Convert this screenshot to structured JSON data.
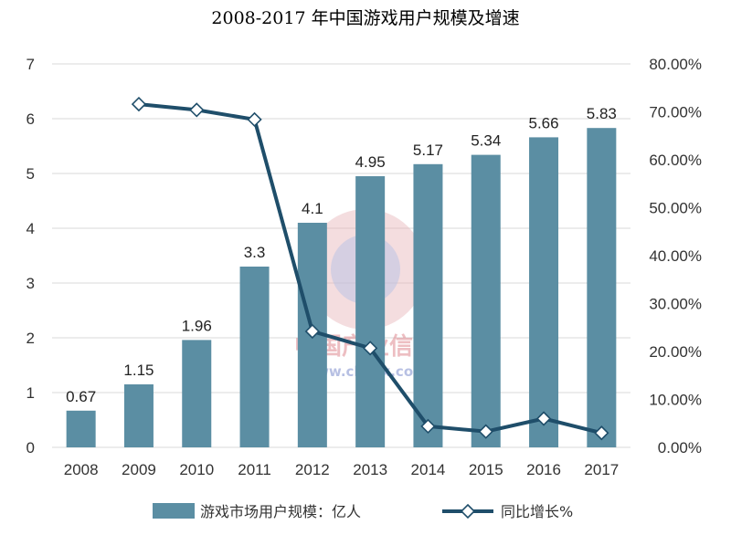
{
  "chart_data": {
    "type": "bar",
    "title": "2008-2017 年中国游戏用户规模及增速",
    "categories": [
      "2008",
      "2009",
      "2010",
      "2011",
      "2012",
      "2013",
      "2014",
      "2015",
      "2016",
      "2017"
    ],
    "series": [
      {
        "name": "游戏市场用户规模：亿人",
        "type": "bar",
        "axis": "left",
        "values": [
          0.67,
          1.15,
          1.96,
          3.3,
          4.1,
          4.95,
          5.17,
          5.34,
          5.66,
          5.83
        ],
        "labels": [
          "0.67",
          "1.15",
          "1.96",
          "3.3",
          "4.1",
          "4.95",
          "5.17",
          "5.34",
          "5.66",
          "5.83"
        ],
        "color": "#5b8ea3"
      },
      {
        "name": "同比增长%",
        "type": "line",
        "axis": "right",
        "values": [
          null,
          71.6,
          70.4,
          68.4,
          24.2,
          20.7,
          4.4,
          3.3,
          6.0,
          3.0
        ],
        "color": "#1f4e6a"
      }
    ],
    "y_left": {
      "min": 0,
      "max": 7,
      "ticks": [
        "0",
        "1",
        "2",
        "3",
        "4",
        "5",
        "6",
        "7"
      ]
    },
    "y_right": {
      "min": 0,
      "max": 80,
      "ticks": [
        "0.00%",
        "10.00%",
        "20.00%",
        "30.00%",
        "40.00%",
        "50.00%",
        "60.00%",
        "70.00%",
        "80.00%"
      ]
    },
    "grid": true,
    "legend_position": "bottom"
  },
  "watermark": {
    "text": "中国产业信息",
    "url": "www.chyxx.com"
  }
}
